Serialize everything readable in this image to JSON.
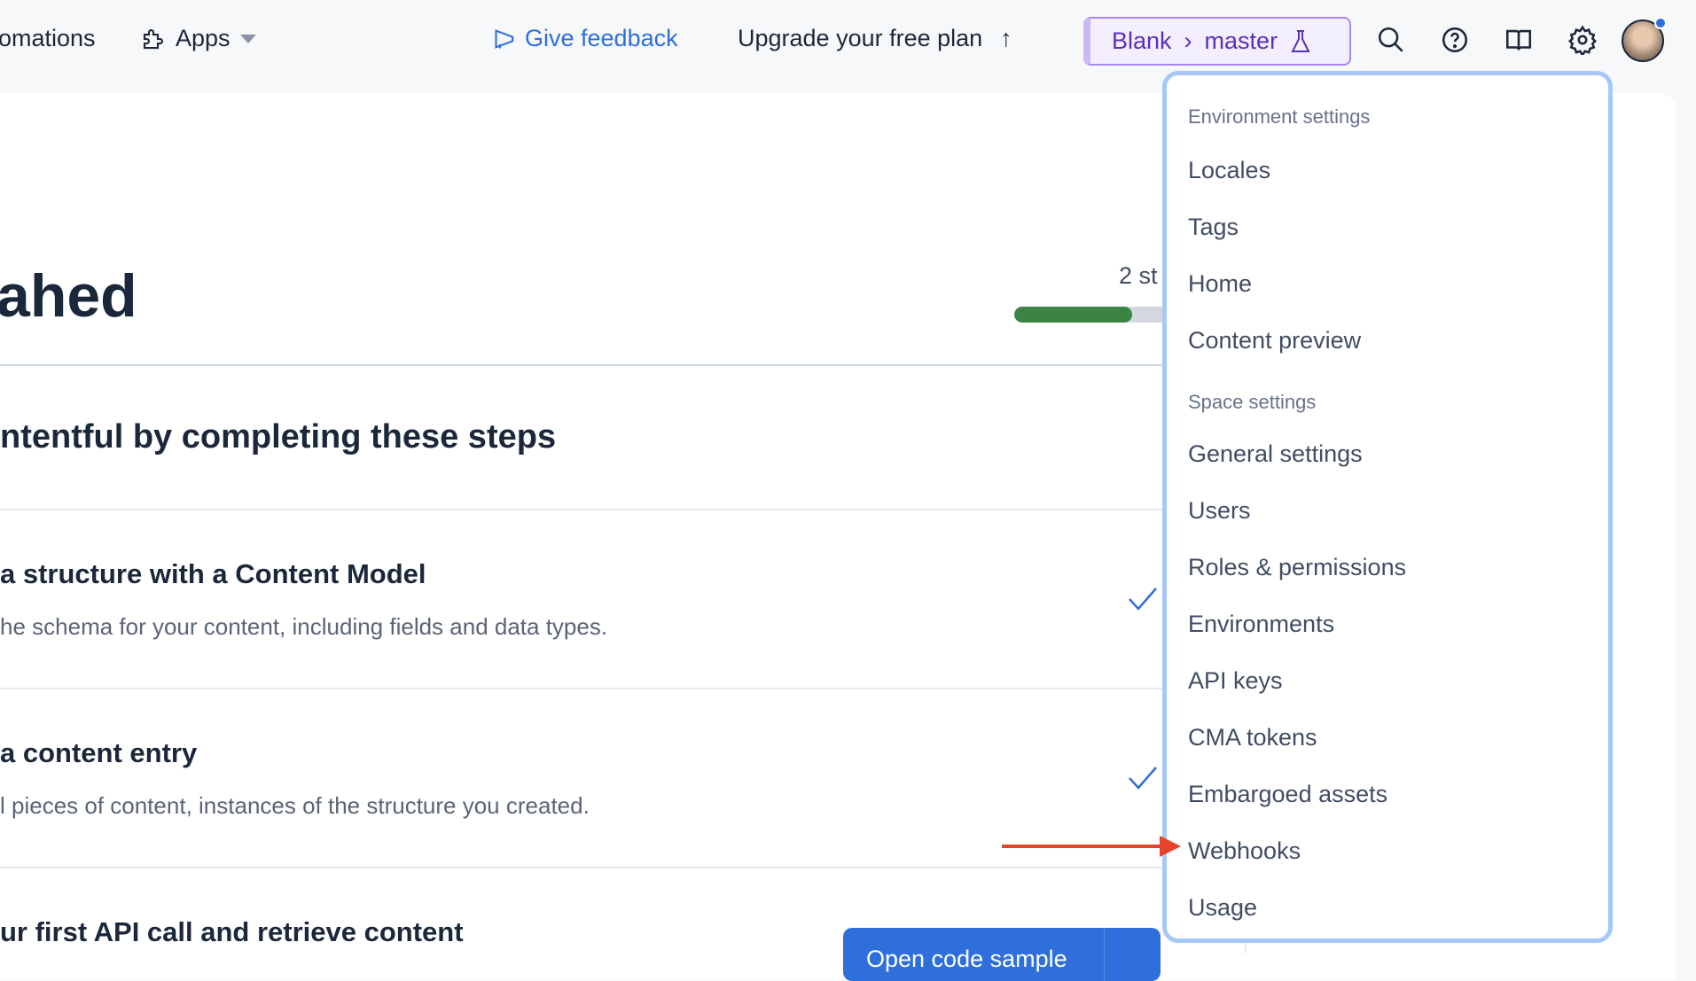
{
  "header": {
    "nav_partial": "omations",
    "apps": "Apps",
    "feedback": "Give feedback",
    "upgrade": "Upgrade your free plan",
    "env": {
      "space": "Blank",
      "environment": "master"
    },
    "icons": [
      "search-icon",
      "help-icon",
      "docs-book-icon",
      "settings-gear-icon",
      "avatar"
    ]
  },
  "main": {
    "title_partial": "ahed",
    "progress": {
      "label_partial": "2 st",
      "fraction": 0.67,
      "fill_color": "#3b8444"
    },
    "subtitle_partial": "ntentful by completing these steps",
    "steps": [
      {
        "title": "a structure with a Content Model",
        "desc": "he schema for your content, including fields and data types.",
        "done": true
      },
      {
        "title": "a content entry",
        "desc": "l pieces of content, instances of the structure you created.",
        "done": true
      },
      {
        "title": "ur first API call and retrieve content",
        "button": "Open code sample"
      }
    ]
  },
  "menu": {
    "env_header": "Environment settings",
    "env_items": [
      "Locales",
      "Tags",
      "Home",
      "Content preview"
    ],
    "space_header": "Space settings",
    "space_items": [
      "General settings",
      "Users",
      "Roles & permissions",
      "Environments",
      "API keys",
      "CMA tokens",
      "Embargoed assets",
      "Webhooks",
      "Usage"
    ]
  },
  "colors": {
    "accent": "#2f6fdb",
    "env_pill": "#5b2fb8",
    "annotation_arrow": "#e5432a"
  }
}
